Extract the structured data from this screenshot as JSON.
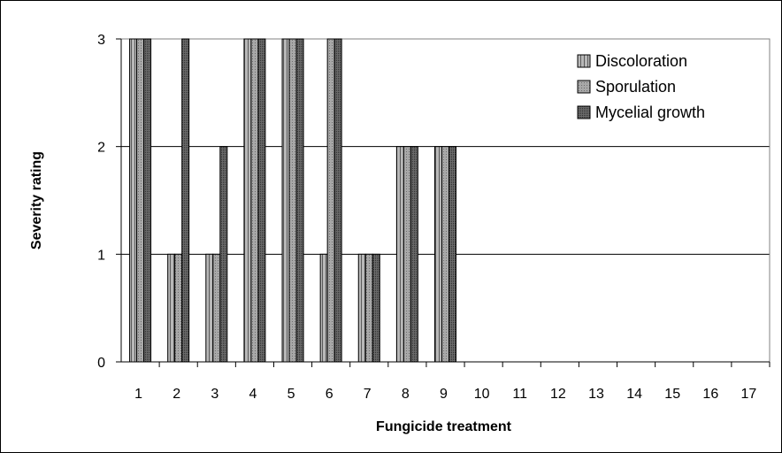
{
  "chart_data": {
    "type": "bar",
    "categories": [
      "1",
      "2",
      "3",
      "4",
      "5",
      "6",
      "7",
      "8",
      "9",
      "10",
      "11",
      "12",
      "13",
      "14",
      "15",
      "16",
      "17"
    ],
    "series": [
      {
        "name": "Discoloration",
        "values": [
          3,
          1,
          1,
          3,
          3,
          1,
          1,
          2,
          2,
          0,
          0,
          0,
          0,
          0,
          0,
          0,
          0
        ],
        "color": "#a6a6a6",
        "pattern": "vertical-stripes"
      },
      {
        "name": "Sporulation",
        "values": [
          3,
          1,
          1,
          3,
          3,
          3,
          1,
          2,
          2,
          0,
          0,
          0,
          0,
          0,
          0,
          0,
          0
        ],
        "color": "#9a9a9a",
        "pattern": "dots"
      },
      {
        "name": "Mycelial growth",
        "values": [
          3,
          3,
          2,
          3,
          3,
          3,
          1,
          2,
          2,
          0,
          0,
          0,
          0,
          0,
          0,
          0,
          0
        ],
        "color": "#595959",
        "pattern": "dense-dots"
      }
    ],
    "xlabel": "Fungicide treatment",
    "ylabel": "Severity rating",
    "ylim": [
      0,
      3
    ],
    "yticks": [
      "0",
      "1",
      "2",
      "3"
    ],
    "grid": true,
    "legend_position": "top-right"
  }
}
